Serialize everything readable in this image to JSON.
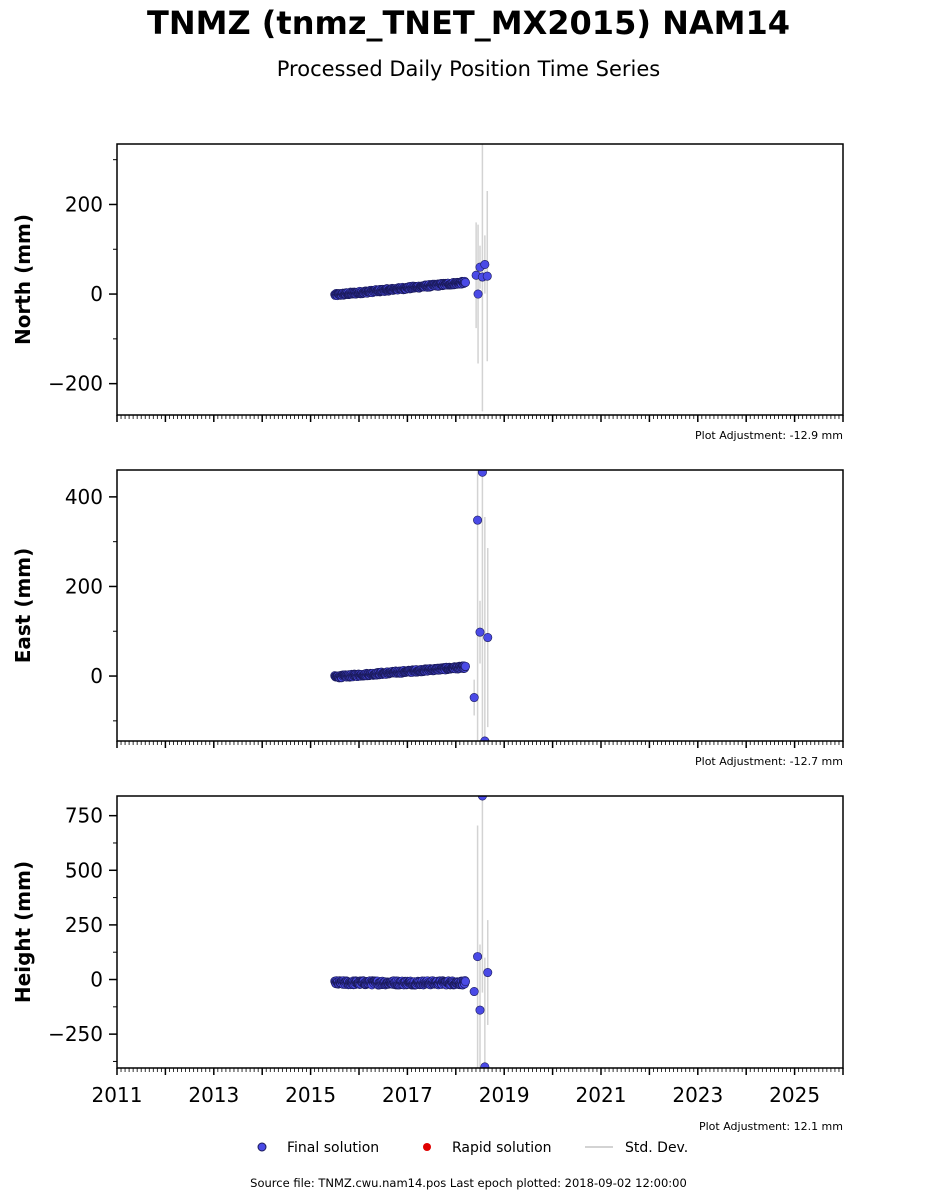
{
  "title": "TNMZ (tnmz_TNET_MX2015) NAM14",
  "subtitle": "Processed Daily Position Time Series",
  "footer": "Source file: TNMZ.cwu.nam14.pos  Last epoch plotted: 2018-09-02 12:00:00",
  "legend": {
    "final": "Final solution",
    "rapid": "Rapid solution",
    "std": "Std. Dev."
  },
  "colors": {
    "final": "#4a4ae6",
    "final_edge": "#1a1a5a",
    "rapid": "#e00000",
    "std": "#d3d3d3"
  },
  "chart_data": [
    {
      "type": "scatter",
      "panel": "north",
      "ylabel": "North (mm)",
      "xlim": [
        2011,
        2026
      ],
      "ylim": [
        -270,
        335
      ],
      "yticks": [
        -200,
        0,
        200
      ],
      "ytick_labels": [
        "−200",
        "0",
        "200"
      ],
      "adjustment": "Plot Adjustment: -12.9 mm",
      "trend": {
        "x": [
          2015.5,
          2018.2
        ],
        "y": [
          -2,
          26
        ]
      },
      "outliers": [
        {
          "x": 2018.42,
          "y": 42,
          "err": 118
        },
        {
          "x": 2018.46,
          "y": 0,
          "err": 155
        },
        {
          "x": 2018.5,
          "y": 60,
          "err": 48
        },
        {
          "x": 2018.55,
          "y": 38,
          "err": 300
        },
        {
          "x": 2018.6,
          "y": 66,
          "err": 65
        },
        {
          "x": 2018.65,
          "y": 40,
          "err": 190
        }
      ]
    },
    {
      "type": "scatter",
      "panel": "east",
      "ylabel": "East (mm)",
      "xlim": [
        2011,
        2026
      ],
      "ylim": [
        -145,
        460
      ],
      "yticks": [
        0,
        200,
        400
      ],
      "ytick_labels": [
        "0",
        "200",
        "400"
      ],
      "adjustment": "Plot Adjustment: -12.7 mm",
      "trend": {
        "x": [
          2015.5,
          2018.2
        ],
        "y": [
          -2,
          20
        ]
      },
      "outliers": [
        {
          "x": 2018.38,
          "y": -48,
          "err": 40
        },
        {
          "x": 2018.45,
          "y": 348,
          "err": 600
        },
        {
          "x": 2018.5,
          "y": 98,
          "err": 70
        },
        {
          "x": 2018.55,
          "y": 455,
          "err": 700
        },
        {
          "x": 2018.6,
          "y": -145,
          "err": 500
        },
        {
          "x": 2018.66,
          "y": 86,
          "err": 200
        }
      ]
    },
    {
      "type": "scatter",
      "panel": "height",
      "ylabel": "Height (mm)",
      "xlim": [
        2011,
        2026
      ],
      "ylim": [
        -405,
        840
      ],
      "yticks": [
        -250,
        0,
        250,
        500,
        750
      ],
      "ytick_labels": [
        "−250",
        "0",
        "250",
        "500",
        "750"
      ],
      "xticks": [
        2011,
        2013,
        2015,
        2017,
        2019,
        2021,
        2023,
        2025
      ],
      "adjustment": "Plot Adjustment: 12.1 mm",
      "trend": {
        "x": [
          2015.5,
          2018.2
        ],
        "y": [
          -15,
          -15
        ]
      },
      "outliers": [
        {
          "x": 2018.38,
          "y": -55,
          "err": 20
        },
        {
          "x": 2018.45,
          "y": 105,
          "err": 600
        },
        {
          "x": 2018.5,
          "y": -140,
          "err": 300
        },
        {
          "x": 2018.55,
          "y": 840,
          "err": 900
        },
        {
          "x": 2018.6,
          "y": -400,
          "err": 500
        },
        {
          "x": 2018.66,
          "y": 32,
          "err": 240
        }
      ]
    }
  ]
}
